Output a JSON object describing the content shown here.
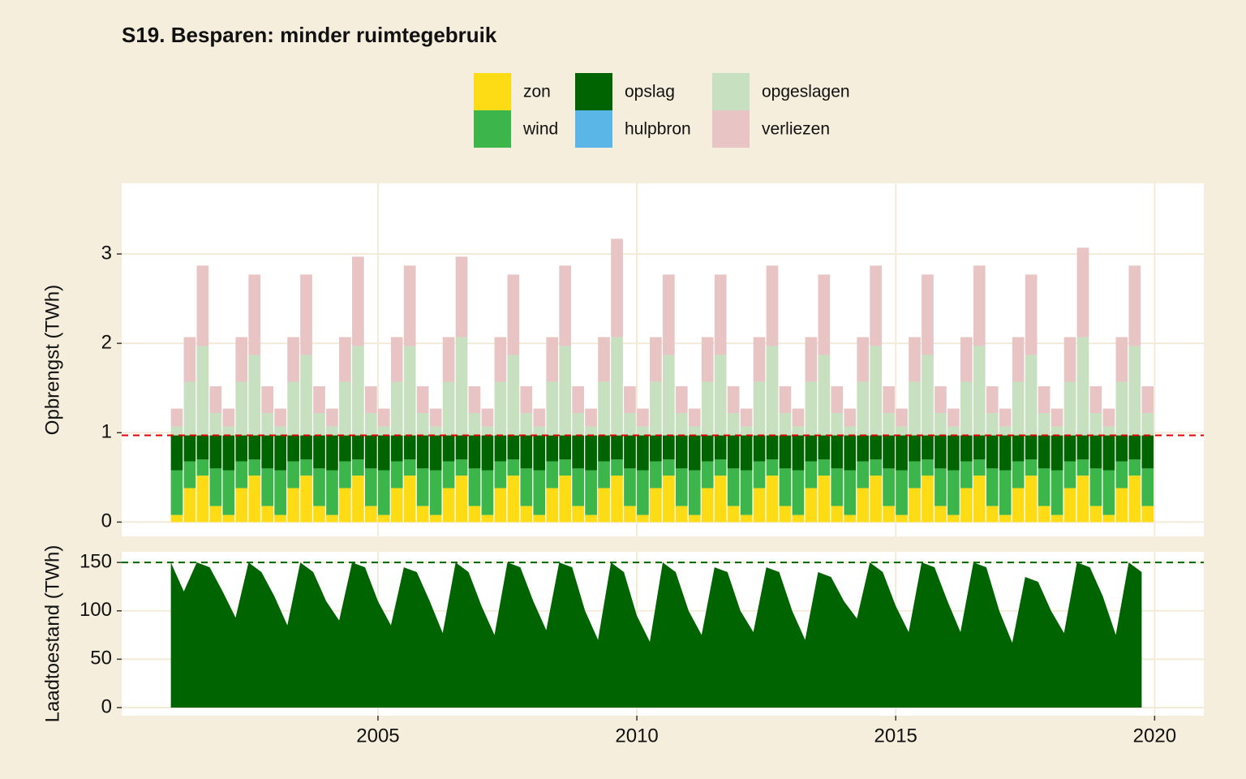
{
  "title": "S19. Besparen: minder ruimtegebruik",
  "chart_data": [
    {
      "type": "bar",
      "stacked": true,
      "ylabel": "Opbrengst (TWh)",
      "x": [
        2001,
        2001.25,
        2001.5,
        2001.75,
        2002,
        2002.25,
        2002.5,
        2002.75,
        2003,
        2003.25,
        2003.5,
        2003.75,
        2004,
        2004.25,
        2004.5,
        2004.75,
        2005,
        2005.25,
        2005.5,
        2005.75,
        2006,
        2006.25,
        2006.5,
        2006.75,
        2007,
        2007.25,
        2007.5,
        2007.75,
        2008,
        2008.25,
        2008.5,
        2008.75,
        2009,
        2009.25,
        2009.5,
        2009.75,
        2010,
        2010.25,
        2010.5,
        2010.75,
        2011,
        2011.25,
        2011.5,
        2011.75,
        2012,
        2012.25,
        2012.5,
        2012.75,
        2013,
        2013.25,
        2013.5,
        2013.75,
        2014,
        2014.25,
        2014.5,
        2014.75,
        2015,
        2015.25,
        2015.5,
        2015.75,
        2016,
        2016.25,
        2016.5,
        2016.75,
        2017,
        2017.25,
        2017.5,
        2017.75,
        2018,
        2018.25,
        2018.5,
        2018.75,
        2019,
        2019.25,
        2019.5,
        2019.75
      ],
      "series": [
        {
          "name": "zon",
          "color": "#fddc16",
          "values": [
            0.08,
            0.38,
            0.52,
            0.18,
            0.08,
            0.38,
            0.52,
            0.18,
            0.08,
            0.38,
            0.52,
            0.18,
            0.08,
            0.38,
            0.52,
            0.18,
            0.08,
            0.38,
            0.52,
            0.18,
            0.08,
            0.38,
            0.52,
            0.18,
            0.08,
            0.38,
            0.52,
            0.18,
            0.08,
            0.38,
            0.52,
            0.18,
            0.08,
            0.38,
            0.52,
            0.18,
            0.08,
            0.38,
            0.52,
            0.18,
            0.08,
            0.38,
            0.52,
            0.18,
            0.08,
            0.38,
            0.52,
            0.18,
            0.08,
            0.38,
            0.52,
            0.18,
            0.08,
            0.38,
            0.52,
            0.18,
            0.08,
            0.38,
            0.52,
            0.18,
            0.08,
            0.38,
            0.52,
            0.18,
            0.08,
            0.38,
            0.52,
            0.18,
            0.08,
            0.38,
            0.52,
            0.18,
            0.08,
            0.38,
            0.52,
            0.18
          ]
        },
        {
          "name": "wind",
          "color": "#3cb54a",
          "values": [
            0.5,
            0.3,
            0.18,
            0.42,
            0.5,
            0.3,
            0.18,
            0.42,
            0.5,
            0.3,
            0.18,
            0.42,
            0.5,
            0.3,
            0.18,
            0.42,
            0.5,
            0.3,
            0.18,
            0.42,
            0.5,
            0.3,
            0.18,
            0.42,
            0.5,
            0.3,
            0.18,
            0.42,
            0.5,
            0.3,
            0.18,
            0.42,
            0.5,
            0.3,
            0.18,
            0.42,
            0.5,
            0.3,
            0.18,
            0.42,
            0.5,
            0.3,
            0.18,
            0.42,
            0.5,
            0.3,
            0.18,
            0.42,
            0.5,
            0.3,
            0.18,
            0.42,
            0.5,
            0.3,
            0.18,
            0.42,
            0.5,
            0.3,
            0.18,
            0.42,
            0.5,
            0.3,
            0.18,
            0.42,
            0.5,
            0.3,
            0.18,
            0.42,
            0.5,
            0.3,
            0.18,
            0.42,
            0.5,
            0.3,
            0.18,
            0.42
          ]
        },
        {
          "name": "opslag",
          "color": "#006400",
          "values": [
            0.39,
            0.29,
            0.27,
            0.37,
            0.39,
            0.29,
            0.27,
            0.37,
            0.39,
            0.29,
            0.27,
            0.37,
            0.39,
            0.29,
            0.27,
            0.37,
            0.39,
            0.29,
            0.27,
            0.37,
            0.39,
            0.29,
            0.27,
            0.37,
            0.39,
            0.29,
            0.27,
            0.37,
            0.39,
            0.29,
            0.27,
            0.37,
            0.39,
            0.29,
            0.27,
            0.37,
            0.39,
            0.29,
            0.27,
            0.37,
            0.39,
            0.29,
            0.27,
            0.37,
            0.39,
            0.29,
            0.27,
            0.37,
            0.39,
            0.29,
            0.27,
            0.37,
            0.39,
            0.29,
            0.27,
            0.37,
            0.39,
            0.29,
            0.27,
            0.37,
            0.39,
            0.29,
            0.27,
            0.37,
            0.39,
            0.29,
            0.27,
            0.37,
            0.39,
            0.29,
            0.27,
            0.37,
            0.39,
            0.29,
            0.27,
            0.37
          ]
        },
        {
          "name": "hulpbron",
          "color": "#5bb6e8",
          "values": [
            0,
            0,
            0,
            0,
            0,
            0,
            0,
            0,
            0,
            0,
            0,
            0,
            0,
            0,
            0,
            0,
            0,
            0,
            0,
            0,
            0,
            0,
            0,
            0,
            0,
            0,
            0,
            0,
            0,
            0,
            0,
            0,
            0,
            0,
            0,
            0,
            0,
            0,
            0,
            0,
            0,
            0,
            0,
            0,
            0,
            0,
            0,
            0,
            0,
            0,
            0,
            0,
            0,
            0,
            0,
            0,
            0,
            0,
            0,
            0,
            0,
            0,
            0,
            0,
            0,
            0,
            0,
            0,
            0,
            0,
            0,
            0,
            0,
            0,
            0,
            0
          ]
        },
        {
          "name": "opgeslagen",
          "color": "#c6e0c0",
          "values": [
            0.1,
            0.6,
            1.0,
            0.25,
            0.1,
            0.6,
            0.9,
            0.25,
            0.1,
            0.6,
            0.9,
            0.25,
            0.1,
            0.6,
            1.0,
            0.25,
            0.1,
            0.6,
            1.0,
            0.25,
            0.1,
            0.6,
            1.1,
            0.25,
            0.1,
            0.6,
            0.9,
            0.25,
            0.1,
            0.6,
            1.0,
            0.25,
            0.1,
            0.6,
            1.1,
            0.25,
            0.1,
            0.6,
            0.9,
            0.25,
            0.1,
            0.6,
            0.9,
            0.25,
            0.1,
            0.6,
            1.0,
            0.25,
            0.1,
            0.6,
            0.9,
            0.25,
            0.1,
            0.6,
            1.0,
            0.25,
            0.1,
            0.6,
            0.9,
            0.25,
            0.1,
            0.6,
            1.0,
            0.25,
            0.1,
            0.6,
            0.9,
            0.25,
            0.1,
            0.6,
            1.1,
            0.25,
            0.1,
            0.6,
            1.0,
            0.25
          ]
        },
        {
          "name": "verliezen",
          "color": "#e8c4c4",
          "values": [
            0.2,
            0.5,
            0.9,
            0.3,
            0.2,
            0.5,
            0.9,
            0.3,
            0.2,
            0.5,
            0.9,
            0.3,
            0.2,
            0.5,
            1.0,
            0.3,
            0.2,
            0.5,
            0.9,
            0.3,
            0.2,
            0.5,
            0.9,
            0.3,
            0.2,
            0.5,
            0.9,
            0.3,
            0.2,
            0.5,
            0.9,
            0.3,
            0.2,
            0.5,
            1.1,
            0.3,
            0.2,
            0.5,
            0.9,
            0.3,
            0.2,
            0.5,
            0.9,
            0.3,
            0.2,
            0.5,
            0.9,
            0.3,
            0.2,
            0.5,
            0.9,
            0.3,
            0.2,
            0.5,
            0.9,
            0.3,
            0.2,
            0.5,
            0.9,
            0.3,
            0.2,
            0.5,
            0.9,
            0.3,
            0.2,
            0.5,
            0.9,
            0.3,
            0.2,
            0.5,
            1.0,
            0.3,
            0.2,
            0.5,
            0.9,
            0.3
          ]
        }
      ],
      "bar_width": 0.25,
      "hline": {
        "value": 0.97,
        "color": "#e00000"
      },
      "xlim": [
        2000.05,
        2020.95
      ],
      "xticks": [
        2005,
        2010,
        2015,
        2020
      ],
      "ylim": [
        -0.16,
        3.79
      ],
      "yticks": [
        0,
        1,
        2,
        3
      ],
      "grid": true
    },
    {
      "type": "area",
      "ylabel": "Laadtoestand (TWh)",
      "color": "#006400",
      "x": [
        2001,
        2001.25,
        2001.5,
        2001.75,
        2002,
        2002.25,
        2002.5,
        2002.75,
        2003,
        2003.25,
        2003.5,
        2003.75,
        2004,
        2004.25,
        2004.5,
        2004.75,
        2005,
        2005.25,
        2005.5,
        2005.75,
        2006,
        2006.25,
        2006.5,
        2006.75,
        2007,
        2007.25,
        2007.5,
        2007.75,
        2008,
        2008.25,
        2008.5,
        2008.75,
        2009,
        2009.25,
        2009.5,
        2009.75,
        2010,
        2010.25,
        2010.5,
        2010.75,
        2011,
        2011.25,
        2011.5,
        2011.75,
        2012,
        2012.25,
        2012.5,
        2012.75,
        2013,
        2013.25,
        2013.5,
        2013.75,
        2014,
        2014.25,
        2014.5,
        2014.75,
        2015,
        2015.25,
        2015.5,
        2015.75,
        2016,
        2016.25,
        2016.5,
        2016.75,
        2017,
        2017.25,
        2017.5,
        2017.75,
        2018,
        2018.25,
        2018.5,
        2018.75,
        2019,
        2019.25,
        2019.5,
        2019.75
      ],
      "values": [
        150,
        120,
        150,
        145,
        120,
        93,
        150,
        140,
        115,
        85,
        150,
        140,
        110,
        90,
        150,
        145,
        110,
        85,
        145,
        140,
        110,
        77,
        150,
        140,
        105,
        75,
        150,
        145,
        110,
        80,
        150,
        145,
        100,
        70,
        150,
        140,
        95,
        68,
        150,
        140,
        100,
        75,
        145,
        140,
        100,
        78,
        145,
        140,
        100,
        70,
        140,
        135,
        110,
        92,
        150,
        140,
        105,
        78,
        150,
        145,
        110,
        78,
        150,
        145,
        100,
        67,
        135,
        130,
        100,
        77,
        150,
        145,
        115,
        75,
        150,
        140
      ],
      "hline": {
        "value": 150,
        "color": "#006400"
      },
      "xlim": [
        2000.05,
        2020.95
      ],
      "xticks": [
        2005,
        2010,
        2015,
        2020
      ],
      "ylim": [
        -8.4,
        161
      ],
      "yticks": [
        0,
        50,
        100,
        150
      ],
      "grid": true
    }
  ]
}
